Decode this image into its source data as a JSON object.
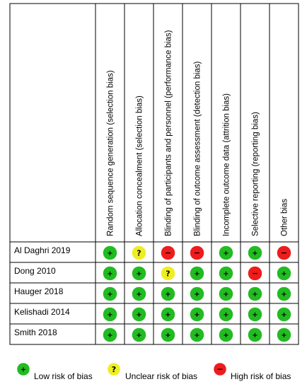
{
  "chart_data": {
    "type": "table",
    "domains": [
      "Random sequence generation (selection bias)",
      "Allocation concealment (selection bias)",
      "Blinding of participants and personnel (performance bias)",
      "Blinding of outcome assessment (detection bias)",
      "Incomplete outcome data (attrition bias)",
      "Selective reporting (reporting bias)",
      "Other bias"
    ],
    "studies": [
      {
        "name": "Al Daghri 2019",
        "ratings": [
          "low",
          "unclear",
          "high",
          "high",
          "low",
          "low",
          "high"
        ]
      },
      {
        "name": "Dong 2010",
        "ratings": [
          "low",
          "low",
          "unclear",
          "low",
          "low",
          "high",
          "low"
        ]
      },
      {
        "name": "Hauger 2018",
        "ratings": [
          "low",
          "low",
          "low",
          "low",
          "low",
          "low",
          "low"
        ]
      },
      {
        "name": "Kelishadi 2014",
        "ratings": [
          "low",
          "low",
          "low",
          "low",
          "low",
          "low",
          "low"
        ]
      },
      {
        "name": "Smith 2018",
        "ratings": [
          "low",
          "low",
          "low",
          "low",
          "low",
          "low",
          "low"
        ]
      }
    ]
  },
  "rating_styles": {
    "low": {
      "color": "#22bb22",
      "symbol": "+"
    },
    "unclear": {
      "color": "#eeee22",
      "symbol": "?"
    },
    "high": {
      "color": "#ee1c1c",
      "symbol": "−"
    }
  },
  "legend": [
    {
      "rating": "low",
      "label": "Low risk of bias"
    },
    {
      "rating": "unclear",
      "label": "Unclear risk of bias"
    },
    {
      "rating": "high",
      "label": "High risk of bias"
    }
  ]
}
